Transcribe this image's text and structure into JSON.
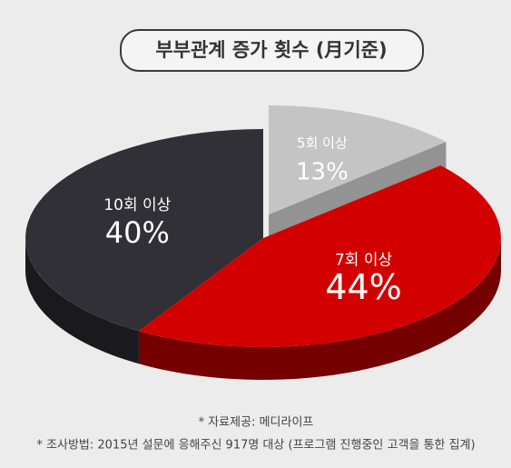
{
  "chart_data": {
    "type": "pie",
    "title": "부부관계 증가 횟수 (月기준)",
    "categories": [
      "5회 이상",
      "7회 이상",
      "10회 이상"
    ],
    "values": [
      13,
      44,
      40
    ],
    "value_labels": [
      "13%",
      "44%",
      "40%"
    ],
    "colors": [
      "#c4c4c4",
      "#d30000",
      "#303036"
    ],
    "notes": [
      "* 자료제공: 메디라이프",
      "* 조사방법: 2015년 설문에 응해주신 917명 대상 (프로그램 진행중인 고객을 통한 집계)"
    ]
  }
}
